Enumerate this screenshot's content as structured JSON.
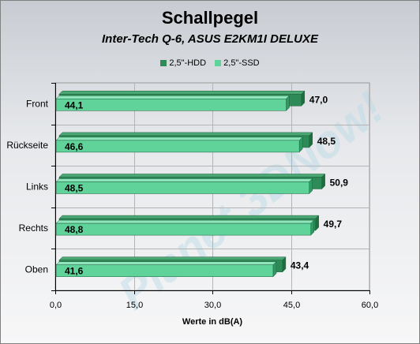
{
  "chart_data": {
    "type": "bar",
    "orientation": "horizontal",
    "title": "Schallpegel",
    "subtitle": "Inter-Tech Q-6, ASUS E2KM1I DELUXE",
    "xlabel": "Werte in dB(A)",
    "xlim": [
      0,
      60
    ],
    "xticks": [
      "0,0",
      "15,0",
      "30,0",
      "45,0",
      "60,0"
    ],
    "grid": true,
    "legend_position": "top-center",
    "categories": [
      "Front",
      "Rückseite",
      "Links",
      "Rechts",
      "Oben"
    ],
    "series": [
      {
        "name": "2,5\"-HDD",
        "color": "#2e8b57",
        "values": [
          47.0,
          48.5,
          50.9,
          49.7,
          43.4
        ],
        "labels": [
          "47,0",
          "48,5",
          "50,9",
          "49,7",
          "43,4"
        ]
      },
      {
        "name": "2,5\"-SSD",
        "color": "#5fd39a",
        "values": [
          44.1,
          46.6,
          48.5,
          48.8,
          41.6
        ],
        "labels": [
          "44,1",
          "46,6",
          "48,5",
          "48,8",
          "41,6"
        ]
      }
    ],
    "watermark": "Planet 3DNow!"
  }
}
